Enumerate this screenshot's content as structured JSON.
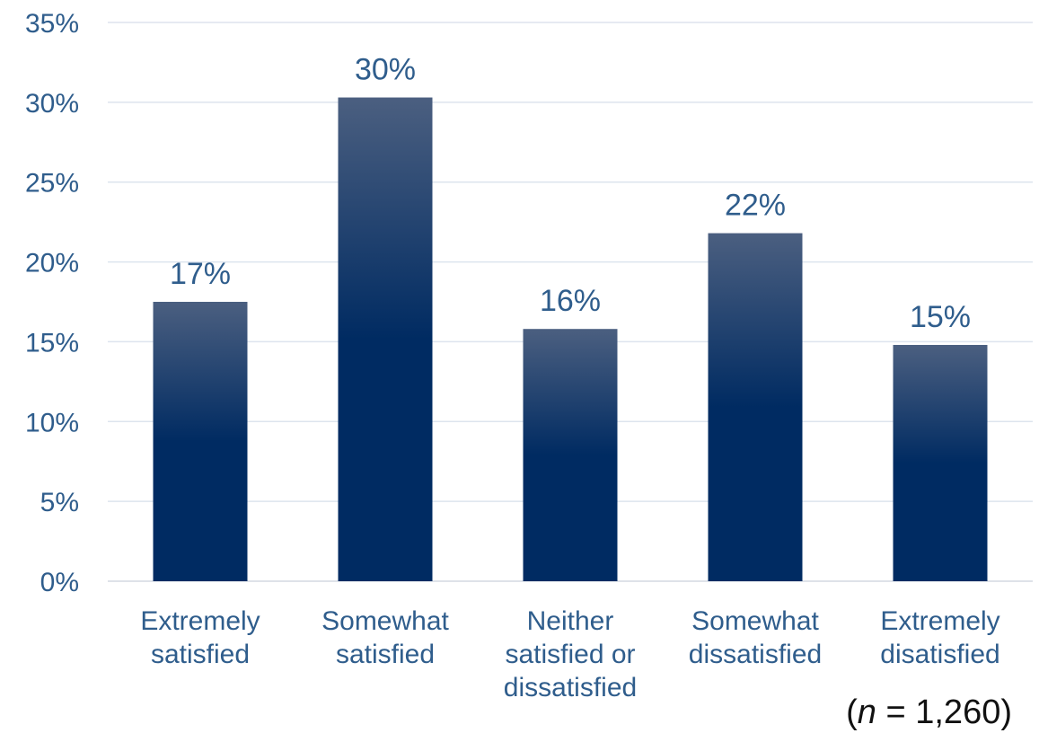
{
  "chart_data": {
    "type": "bar",
    "title": "",
    "xlabel": "",
    "ylabel": "",
    "categories": [
      [
        "Extremely",
        "satisfied"
      ],
      [
        "Somewhat",
        "satisfied"
      ],
      [
        "Neither",
        "satisfied or",
        "dissatisfied"
      ],
      [
        "Somewhat",
        "dissatisfied"
      ],
      [
        "Extremely",
        "disatisfied"
      ]
    ],
    "values": [
      17.5,
      30.3,
      15.8,
      21.8,
      14.8
    ],
    "value_labels": [
      "17%",
      "30%",
      "16%",
      "22%",
      "15%"
    ],
    "ylim": [
      0,
      35
    ],
    "yticks": [
      0,
      5,
      10,
      15,
      20,
      25,
      30,
      35
    ],
    "ytick_labels": [
      "0%",
      "5%",
      "10%",
      "15%",
      "20%",
      "25%",
      "30%",
      "35%"
    ],
    "grid": true,
    "legend": "none",
    "bar_color_top": "#4b5f80",
    "bar_color_bottom": "#002b62",
    "text_color": "#2f5d8c"
  },
  "note": {
    "open": "(",
    "variable": "n",
    "rest": " = 1,260)"
  }
}
